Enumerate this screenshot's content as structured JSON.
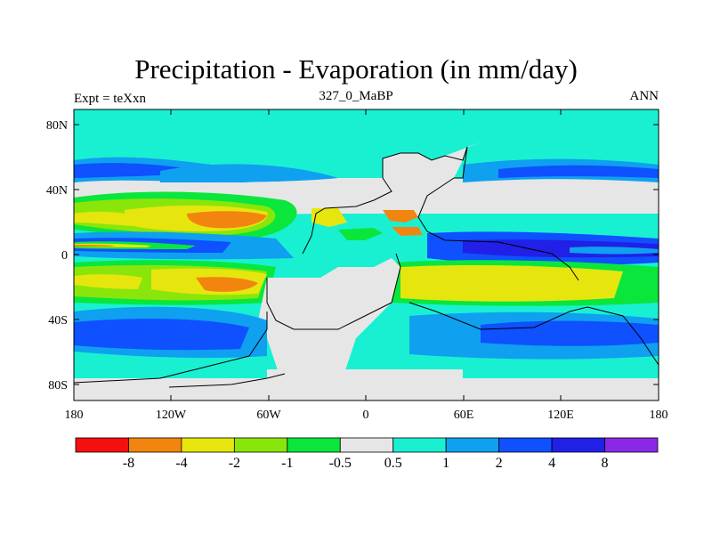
{
  "title": "Precipitation - Evaporation (in mm/day)",
  "subtitle_left": "Expt = teXxn",
  "subtitle_center": "327_0_MaBP",
  "subtitle_right": "ANN",
  "axes": {
    "y_ticks": [
      "80N",
      "40N",
      "0",
      "40S",
      "80S"
    ],
    "x_ticks": [
      "180",
      "120W",
      "60W",
      "0",
      "60E",
      "120E",
      "180"
    ]
  },
  "colorbar": {
    "colors": [
      "#f50f0f",
      "#f2850f",
      "#e6e60e",
      "#8ae60a",
      "#0ae63c",
      "#e6e6e6",
      "#19f0d2",
      "#0fa0f0",
      "#0f50ff",
      "#2020e6",
      "#8a28e6"
    ],
    "labels": [
      "-8",
      "-4",
      "-2",
      "-1",
      "-0.5",
      "0.5",
      "1",
      "2",
      "4",
      "8"
    ]
  },
  "palette": {
    "background": "#19f0d2",
    "dry_pale": "#e6e6e6",
    "green": "#0ae63c",
    "light_green": "#8ae60a",
    "yellow": "#e6e60e",
    "orange": "#f2850f",
    "light_blue": "#0fa0f0",
    "blue": "#0f50ff",
    "dark_blue": "#2020e6"
  }
}
